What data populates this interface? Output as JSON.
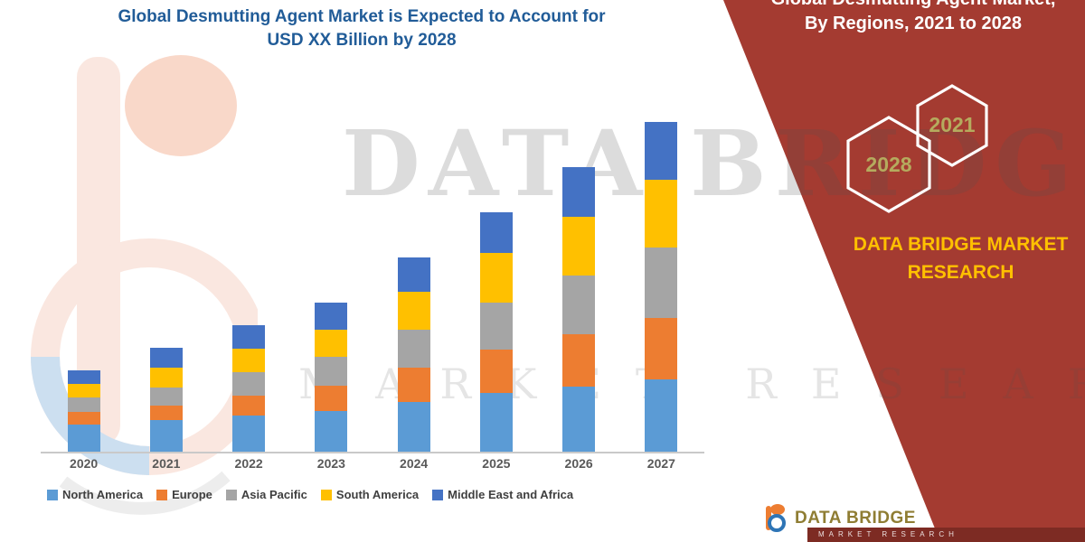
{
  "title": {
    "line1": "Global Desmutting Agent Market is Expected to Account for",
    "line2": "USD XX Billion by 2028"
  },
  "panel": {
    "bg_color": "#A43B31",
    "heading_line1": "Global Desmutting Agent Market,",
    "heading_line2": "By Regions, 2021 to 2028",
    "hexagons": [
      {
        "year": "2028"
      },
      {
        "year": "2021"
      }
    ],
    "brand_line1": "DATA BRIDGE MARKET",
    "brand_line2": "RESEARCH",
    "brand_color": "#FFC000"
  },
  "watermark": {
    "line1": "DATA BRIDGE",
    "line2": "MARKET RESEARCH"
  },
  "footer": {
    "logo_text": "DATA BRIDGE",
    "logo_subtext": "MARKET RESEARCH"
  },
  "chart_data": {
    "type": "bar",
    "stacked": true,
    "title": "Global Desmutting Agent Market is Expected to Account for USD XX Billion by 2028",
    "xlabel": "",
    "ylabel": "",
    "unit": "USD Billion (values masked as XX)",
    "grid": false,
    "legend_position": "bottom",
    "ylim": [
      0,
      4
    ],
    "categories": [
      "2020",
      "2021",
      "2022",
      "2023",
      "2024",
      "2025",
      "2026",
      "2027"
    ],
    "series": [
      {
        "name": "North America",
        "color": "#5B9BD5",
        "values": [
          0.3,
          0.35,
          0.4,
          0.45,
          0.55,
          0.65,
          0.72,
          0.8
        ]
      },
      {
        "name": "Europe",
        "color": "#ED7D31",
        "values": [
          0.14,
          0.16,
          0.22,
          0.28,
          0.38,
          0.48,
          0.58,
          0.68
        ]
      },
      {
        "name": "Asia Pacific",
        "color": "#A5A5A5",
        "values": [
          0.16,
          0.2,
          0.26,
          0.32,
          0.42,
          0.52,
          0.65,
          0.78
        ]
      },
      {
        "name": "South America",
        "color": "#FFC000",
        "values": [
          0.15,
          0.22,
          0.26,
          0.3,
          0.42,
          0.55,
          0.65,
          0.75
        ]
      },
      {
        "name": "Middle East and Africa",
        "color": "#4472C4",
        "values": [
          0.15,
          0.22,
          0.26,
          0.3,
          0.38,
          0.45,
          0.55,
          0.64
        ]
      }
    ]
  }
}
